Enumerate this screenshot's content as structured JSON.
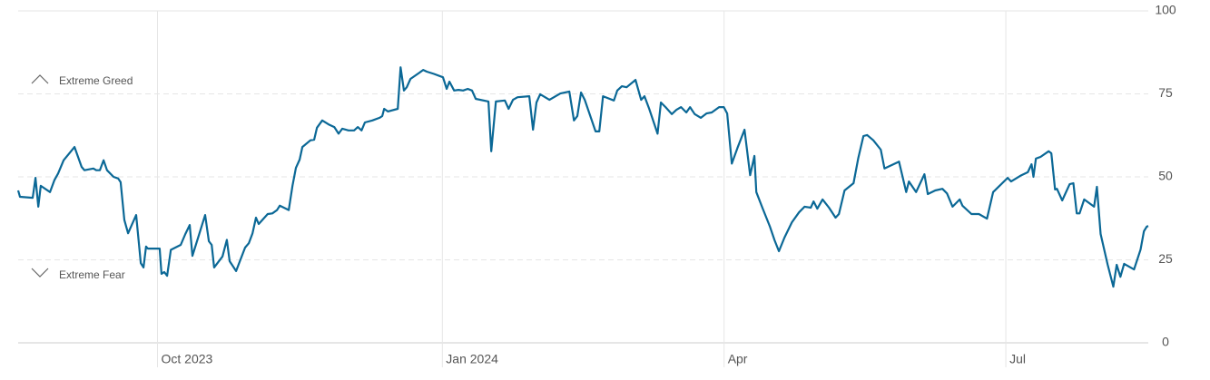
{
  "chart_data": {
    "type": "line",
    "x": [
      0,
      0.6,
      4.7,
      5.6,
      6.5,
      7.3,
      10.3,
      11.7,
      12.9,
      14.7,
      18.2,
      20.5,
      21.4,
      24.3,
      25.2,
      26.4,
      27.6,
      28.7,
      30.8,
      32.3,
      33.1,
      34.3,
      35.5,
      38.1,
      39.6,
      40.5,
      41.3,
      41.9,
      45.7,
      46.3,
      47.2,
      48.1,
      49.3,
      52.5,
      54,
      55.4,
      56.3,
      60.4,
      61.6,
      62.5,
      63.3,
      66,
      67.4,
      68.3,
      70.4,
      73.3,
      74.5,
      75.7,
      76.8,
      77.7,
      80.6,
      82.1,
      83.6,
      84.5,
      87.4,
      88.6,
      89.7,
      90.9,
      91.8,
      94.4,
      95.6,
      96.5,
      98.2,
      100.3,
      102.1,
      103.5,
      104.7,
      106.7,
      108.5,
      109.7,
      110.9,
      112,
      114.4,
      116.7,
      117.6,
      118.2,
      119.4,
      122.6,
      123.5,
      124.6,
      125.5,
      126.7,
      129.6,
      130.8,
      132,
      134.3,
      137.2,
      138.4,
      139.3,
      140.8,
      142.2,
      143.7,
      145.2,
      146.6,
      147.8,
      151.9,
      152.8,
      154.3,
      157.2,
      158.4,
      159.8,
      161.3,
      165.1,
      166.3,
      167.4,
      168.6,
      171.6,
      175.1,
      178,
      179.5,
      180.6,
      181.8,
      183,
      186.5,
      187.7,
      188.9,
      192.4,
      193.5,
      195,
      196.5,
      199.4,
      201.2,
      202.3,
      203.8,
      206.5,
      207.6,
      209.1,
      211.1,
      212.6,
      214.1,
      215.8,
      217,
      218.5,
      220.5,
      222.3,
      224,
      226.4,
      227.9,
      229,
      230.5,
      232.3,
      234.6,
      236.4,
      237.8,
      238.4,
      240.5,
      242.8,
      244.3,
      245.7,
      247.5,
      249.9,
      252.2,
      254,
      256,
      256.9,
      258.1,
      259.8,
      261.9,
      264,
      265.1,
      266.9,
      269.8,
      271.3,
      273,
      274.2,
      276.2,
      278.6,
      279.8,
      284.5,
      286.8,
      287.7,
      290,
      292.7,
      293.8,
      296.2,
      298.5,
      300,
      301.8,
      304.1,
      305,
      307.9,
      310.3,
      312.9,
      314.9,
      319.6,
      320.7,
      324,
      326.1,
      327.3,
      327.9,
      328.7,
      330.2,
      332.8,
      333.7,
      334.9,
      335.5,
      337.2,
      339.6,
      340.8,
      341.9,
      342.8,
      344.3,
      347.5,
      348.4,
      349.6,
      351.9,
      353.7,
      354.8,
      356,
      357.2,
      360.4,
      362.5,
      363.6,
      364.5,
      365
    ],
    "series": [
      {
        "color": "#0b6896",
        "values": [
          45.9,
          44,
          43.7,
          49.7,
          41,
          47.3,
          45.4,
          49,
          51,
          55,
          59,
          53,
          52,
          52.5,
          52,
          52,
          55,
          52,
          50,
          49.5,
          48.4,
          37,
          33,
          38.5,
          24,
          22.7,
          29,
          28.4,
          28.4,
          20.8,
          21.3,
          20.2,
          28,
          29.5,
          32.8,
          35.5,
          26.2,
          38.5,
          30.6,
          29.5,
          22.7,
          26,
          31,
          24.6,
          21.6,
          28.7,
          30,
          33,
          37.7,
          35.8,
          38.8,
          39,
          40,
          41.3,
          40,
          47.3,
          52.7,
          55.2,
          59,
          61,
          61.2,
          64.8,
          67,
          65.8,
          65,
          63,
          64.5,
          64,
          64,
          65,
          64,
          66.4,
          67,
          67.8,
          68.3,
          70.5,
          69.7,
          70.5,
          83,
          76,
          77,
          79.5,
          81.4,
          82.2,
          81.7,
          81,
          80,
          76.5,
          78.7,
          76,
          76.2,
          76,
          76.5,
          76,
          73.5,
          72.7,
          57.7,
          72.7,
          73,
          70.5,
          73.2,
          74,
          74.3,
          64.2,
          72.4,
          74.9,
          73.2,
          75.1,
          75.7,
          67,
          68.3,
          75.4,
          73.2,
          63.7,
          63.7,
          74.3,
          73,
          76,
          77.3,
          77,
          79.2,
          73.2,
          74.3,
          70.5,
          63,
          72.4,
          71,
          68.9,
          70.2,
          71,
          69.4,
          71,
          68.9,
          67.8,
          69.1,
          69.4,
          71,
          71,
          69.1,
          54,
          58.7,
          64.2,
          50.5,
          56.3,
          45.4,
          40.4,
          35,
          30.9,
          27.6,
          31.7,
          36.3,
          39.3,
          41,
          40.7,
          42.6,
          40.4,
          43.2,
          40.7,
          37.7,
          38.8,
          45.9,
          48.1,
          55.5,
          62.3,
          62.6,
          61,
          58.2,
          52.5,
          54.6,
          45.4,
          48.6,
          45.4,
          50.8,
          44.8,
          45.9,
          46.4,
          45,
          41,
          43.2,
          41.3,
          38.8,
          38.8,
          37.4,
          45.4,
          49.7,
          48.6,
          50.5,
          51.4,
          53.8,
          50,
          55.5,
          56,
          57.7,
          57.1,
          46.2,
          46.4,
          42.9,
          47.8,
          48.1,
          39,
          39,
          43.2,
          41,
          47,
          32.8,
          23.5,
          16.9,
          23.5,
          19.9,
          23.8,
          22.1,
          28.1,
          33.6,
          35,
          35.2
        ]
      }
    ],
    "xlim": [
      0,
      365
    ],
    "xticks": [
      {
        "value": 45,
        "label": "Oct 2023"
      },
      {
        "value": 137,
        "label": "Jan 2024"
      },
      {
        "value": 228,
        "label": "Apr"
      },
      {
        "value": 319,
        "label": "Jul"
      }
    ],
    "ylim": [
      0,
      100
    ],
    "yticks": [
      0,
      25,
      50,
      75,
      100
    ],
    "grid": true,
    "annotations": [
      "Extreme Greed",
      "Extreme Fear"
    ]
  }
}
